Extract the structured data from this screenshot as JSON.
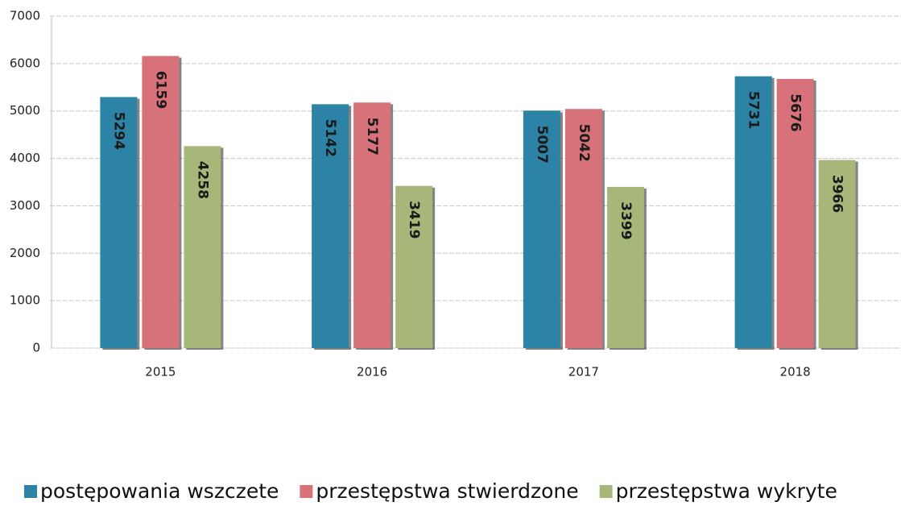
{
  "chart_data": {
    "type": "bar",
    "categories": [
      "2015",
      "2016",
      "2017",
      "2018"
    ],
    "series": [
      {
        "name": "postępowania wszczete",
        "color": "#2c83a6",
        "values": [
          5294,
          5142,
          5007,
          5731
        ]
      },
      {
        "name": "przestępstwa stwierdzone",
        "color": "#d8727a",
        "values": [
          6159,
          5177,
          5042,
          5676
        ]
      },
      {
        "name": "przestępstwa wykryte",
        "color": "#a6b779",
        "values": [
          4258,
          3419,
          3399,
          3966
        ]
      }
    ],
    "ylim": [
      0,
      7000
    ],
    "yticks": [
      0,
      1000,
      2000,
      3000,
      4000,
      5000,
      6000,
      7000
    ],
    "grid": true
  }
}
